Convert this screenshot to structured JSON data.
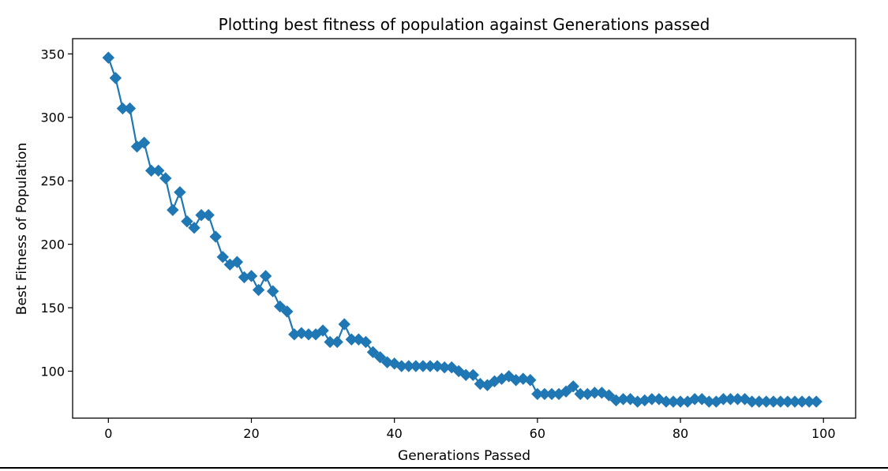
{
  "chart_data": {
    "type": "line",
    "title": "Plotting best fitness of population against Generations passed",
    "xlabel": "Generations Passed",
    "ylabel": "Best Fitness of Population",
    "xlim": [
      -5,
      104.5
    ],
    "ylim": [
      63,
      362
    ],
    "xticks": [
      0,
      20,
      40,
      60,
      80,
      100
    ],
    "yticks": [
      100,
      150,
      200,
      250,
      300,
      350
    ],
    "grid": false,
    "marker": "diamond",
    "color": "#1f77b4",
    "series": [
      {
        "x": [
          0,
          1,
          2,
          3,
          4,
          5,
          6,
          7,
          8,
          9,
          10,
          11,
          12,
          13,
          14,
          15,
          16,
          17,
          18,
          19,
          20,
          21,
          22,
          23,
          24,
          25,
          26,
          27,
          28,
          29,
          30,
          31,
          32,
          33,
          34,
          35,
          36,
          37,
          38,
          39,
          40,
          41,
          42,
          43,
          44,
          45,
          46,
          47,
          48,
          49,
          50,
          51,
          52,
          53,
          54,
          55,
          56,
          57,
          58,
          59,
          60,
          61,
          62,
          63,
          64,
          65,
          66,
          67,
          68,
          69,
          70,
          71,
          72,
          73,
          74,
          75,
          76,
          77,
          78,
          79,
          80,
          81,
          82,
          83,
          84,
          85,
          86,
          87,
          88,
          89,
          90,
          91,
          92,
          93,
          94,
          95,
          96,
          97,
          98,
          99
        ],
        "values": [
          347,
          331,
          307,
          307,
          277,
          280,
          258,
          258,
          252,
          227,
          241,
          218,
          213,
          223,
          223,
          206,
          190,
          184,
          186,
          174,
          175,
          164,
          175,
          163,
          151,
          147,
          129,
          130,
          129,
          129,
          132,
          123,
          123,
          137,
          125,
          125,
          123,
          115,
          111,
          107,
          106,
          104,
          104,
          104,
          104,
          104,
          104,
          103,
          103,
          100,
          97,
          97,
          90,
          89,
          92,
          94,
          96,
          93,
          94,
          93,
          82,
          82,
          82,
          82,
          84,
          88,
          82,
          82,
          83,
          83,
          81,
          77,
          78,
          78,
          76,
          77,
          78,
          78,
          76,
          76,
          76,
          76,
          78,
          78,
          76,
          76,
          78,
          78,
          78,
          78,
          76,
          76,
          76,
          76,
          76,
          76,
          76,
          76,
          76,
          76
        ]
      }
    ]
  }
}
